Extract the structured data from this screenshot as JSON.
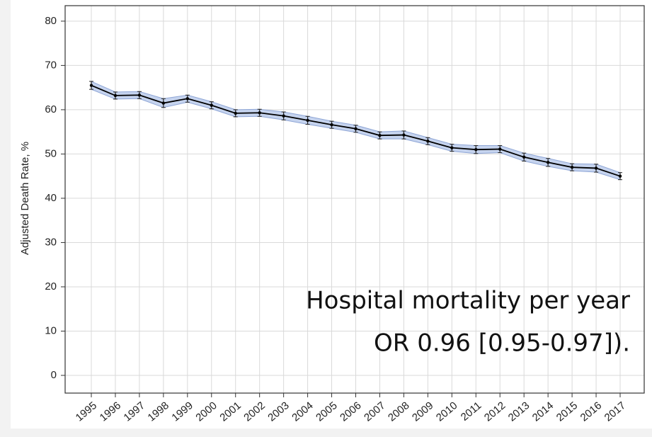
{
  "chart_data": {
    "type": "line",
    "ylabel": "Adjusted Death Rate, %",
    "categories": [
      "1995",
      "1996",
      "1997",
      "1998",
      "1999",
      "2000",
      "2001",
      "2002",
      "2003",
      "2004",
      "2005",
      "2006",
      "2007",
      "2008",
      "2009",
      "2010",
      "2011",
      "2012",
      "2013",
      "2014",
      "2015",
      "2016",
      "2017"
    ],
    "values": [
      65.5,
      63.2,
      63.3,
      61.5,
      62.5,
      61.0,
      59.2,
      59.3,
      58.6,
      57.6,
      56.6,
      55.7,
      54.2,
      54.3,
      52.9,
      51.4,
      51.0,
      51.1,
      49.3,
      48.1,
      47.0,
      46.8,
      45.0
    ],
    "lower": [
      64.6,
      62.4,
      62.5,
      60.5,
      61.7,
      60.2,
      58.4,
      58.5,
      57.7,
      56.7,
      55.8,
      54.9,
      53.4,
      53.4,
      52.1,
      50.6,
      50.1,
      50.3,
      48.4,
      47.2,
      46.2,
      45.9,
      44.2
    ],
    "upper": [
      66.4,
      64.0,
      64.1,
      62.5,
      63.3,
      61.8,
      60.0,
      60.1,
      59.5,
      58.5,
      57.4,
      56.5,
      55.0,
      55.2,
      53.7,
      52.2,
      51.9,
      51.9,
      50.2,
      49.0,
      47.8,
      47.7,
      45.8
    ],
    "color": "#000000",
    "band_color": "#c5d3ee",
    "ylim": [
      -4,
      83.5
    ],
    "yticks": [
      0,
      10,
      20,
      30,
      40,
      50,
      60,
      70,
      80
    ],
    "grid": true,
    "annotations": [
      "Hospital mortality per year",
      "OR 0.96 [0.95-0.97])."
    ]
  }
}
